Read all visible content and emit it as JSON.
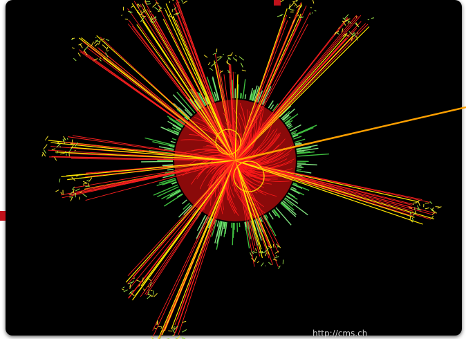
{
  "watermark": "http://cms.ch"
}
